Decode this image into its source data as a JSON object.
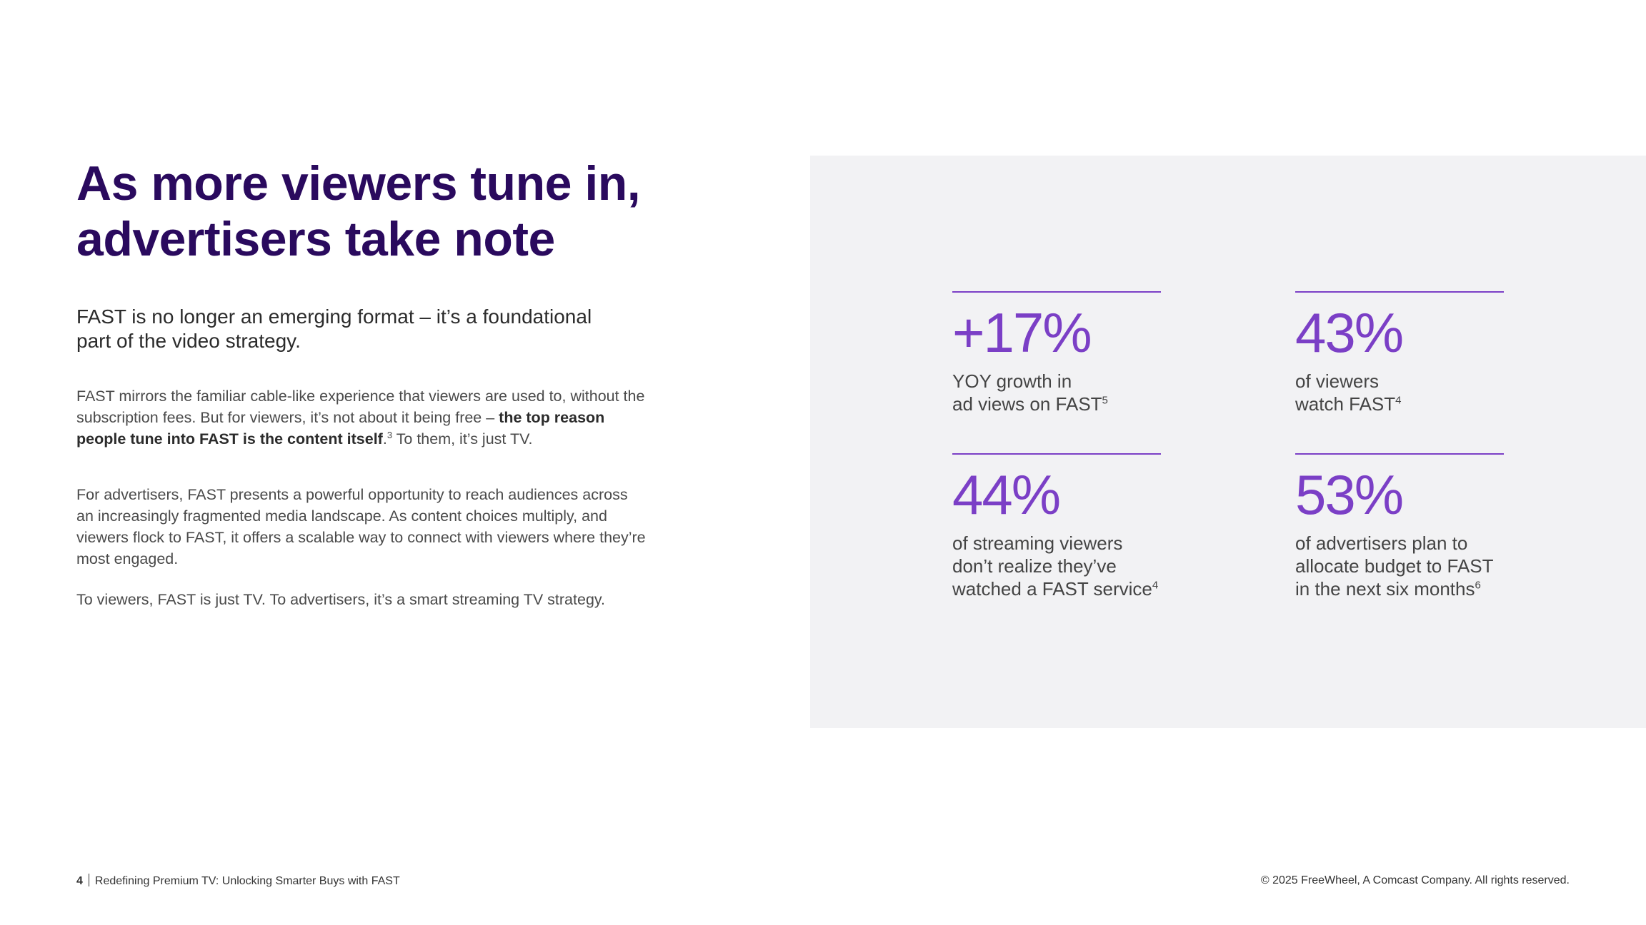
{
  "heading": {
    "line1": "As more viewers tune in,",
    "line2": "advertisers take note"
  },
  "lede": {
    "line1": "FAST is no longer an emerging format – it’s a foundational",
    "line2": "part of the video strategy."
  },
  "paragraphs": {
    "p1_a": "FAST mirrors the familiar cable-like experience that viewers are used to, without the subscription fees. But for viewers, it’s not about it being free – ",
    "p1_bold": "the top reason people tune into FAST is the content itself",
    "p1_b": ".",
    "p1_sup": "3",
    "p1_c": " To them, it’s just TV.",
    "p2": "For advertisers, FAST presents a powerful opportunity to reach audiences across an increasingly fragmented media landscape. As content choices multiply, and viewers flock to FAST, it offers a scalable way to connect with viewers where they’re most engaged.",
    "p3": "To viewers, FAST is just TV. To advertisers, it’s a smart streaming TV strategy."
  },
  "stats": [
    {
      "value": "+17%",
      "lines": [
        "YOY growth in",
        "ad views on FAST"
      ],
      "sup": "5"
    },
    {
      "value": "43%",
      "lines": [
        "of viewers",
        "watch FAST"
      ],
      "sup": "4"
    },
    {
      "value": "44%",
      "lines": [
        "of streaming viewers",
        "don’t realize they’ve",
        "watched a FAST service"
      ],
      "sup": "4"
    },
    {
      "value": "53%",
      "lines": [
        "of advertisers plan to",
        "allocate budget to FAST",
        "in the next six months"
      ],
      "sup": "6"
    }
  ],
  "footer": {
    "page_number": "4",
    "doc_title": "Redefining Premium TV: Unlocking Smarter Buys with FAST",
    "copyright": "© 2025 FreeWheel, A Comcast Company. All rights reserved."
  },
  "colors": {
    "heading": "#2a0a5e",
    "accent": "#7b3fc6",
    "panel_bg": "#f2f2f4"
  }
}
